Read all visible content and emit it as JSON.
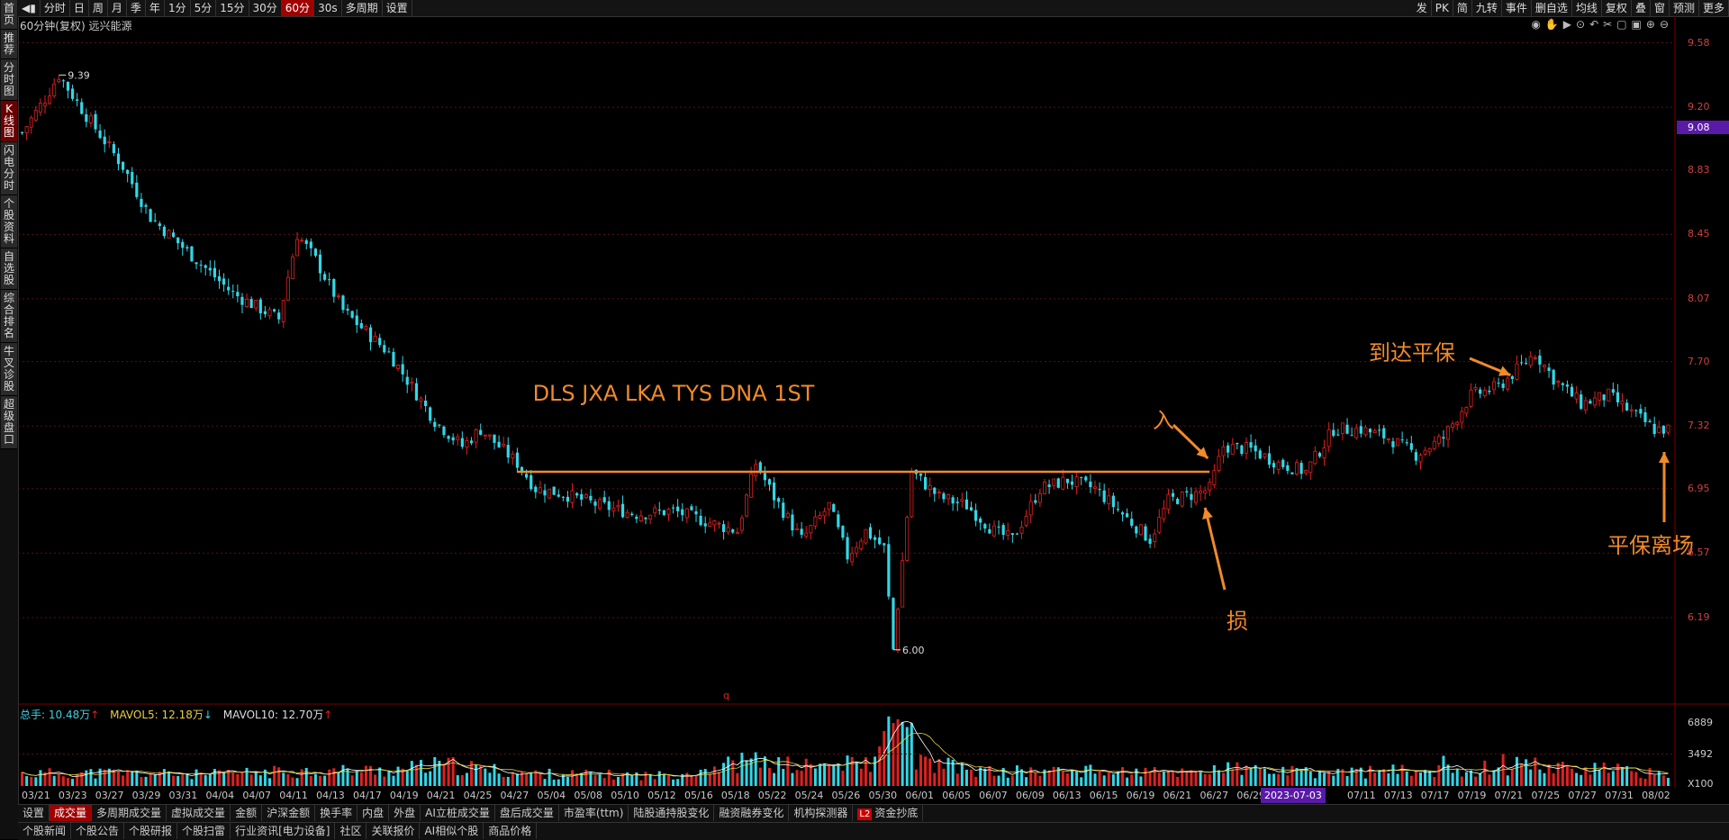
{
  "sidebar": {
    "items": [
      "首页",
      "推荐",
      "分时图",
      "K线图",
      "闪电分时",
      "个股资料",
      "自选股",
      "综合排名",
      "牛叉诊股",
      "超级盘口"
    ],
    "active_index": 3
  },
  "toolbar": {
    "periods": [
      "分时",
      "日",
      "周",
      "月",
      "季",
      "年",
      "1分",
      "5分",
      "15分",
      "30分",
      "60分",
      "30s",
      "多周期",
      "设置"
    ],
    "active_index": 10,
    "right_items": [
      "发",
      "PK",
      "简",
      "九转",
      "事件",
      "删自选",
      "均线",
      "复权",
      "叠",
      "窗",
      "预测",
      "更多"
    ]
  },
  "info": {
    "period": "60分钟(复权)",
    "stock_name": "远兴能源"
  },
  "axis": {
    "price_ticks": [
      "9.58",
      "9.20",
      "8.83",
      "8.45",
      "8.07",
      "7.70",
      "7.32",
      "6.95",
      "6.57",
      "6.19"
    ],
    "current_price": "9.08",
    "volume_ticks": [
      "6889",
      "3492",
      "X100"
    ]
  },
  "chart_data": {
    "type": "candlestick",
    "title": "DLS JXA LKA TYS DNA 1ST",
    "y_range": [
      5.85,
      9.62
    ],
    "max_label": "9.39",
    "min_label": "6.00",
    "breakeven_line": 7.05,
    "x_dates": [
      "03/21",
      "03/23",
      "03/27",
      "03/29",
      "03/31",
      "04/04",
      "04/07",
      "04/11",
      "04/13",
      "04/17",
      "04/19",
      "04/21",
      "04/25",
      "04/27",
      "05/04",
      "05/08",
      "05/10",
      "05/12",
      "05/16",
      "05/18",
      "05/22",
      "05/24",
      "05/26",
      "05/30",
      "06/01",
      "06/05",
      "06/07",
      "06/09",
      "06/13",
      "06/15",
      "06/19",
      "06/21",
      "06/27",
      "06/29",
      "07",
      "07",
      "07/11",
      "07/13",
      "07/17",
      "07/19",
      "07/21",
      "07/25",
      "07/27",
      "07/31",
      "08/02"
    ],
    "highlight_date": "2023-07-03",
    "price_path": [
      [
        0,
        9.05
      ],
      [
        5,
        9.25
      ],
      [
        8,
        9.39
      ],
      [
        14,
        9.15
      ],
      [
        22,
        8.85
      ],
      [
        28,
        8.55
      ],
      [
        38,
        8.3
      ],
      [
        46,
        8.1
      ],
      [
        56,
        7.95
      ],
      [
        60,
        8.45
      ],
      [
        64,
        8.3
      ],
      [
        70,
        8.0
      ],
      [
        80,
        7.75
      ],
      [
        90,
        7.35
      ],
      [
        96,
        7.2
      ],
      [
        100,
        7.3
      ],
      [
        108,
        7.1
      ],
      [
        112,
        6.95
      ],
      [
        118,
        6.92
      ],
      [
        126,
        6.85
      ],
      [
        134,
        6.8
      ],
      [
        142,
        6.82
      ],
      [
        150,
        6.75
      ],
      [
        156,
        6.7
      ],
      [
        160,
        7.1
      ],
      [
        164,
        6.9
      ],
      [
        170,
        6.65
      ],
      [
        176,
        6.85
      ],
      [
        180,
        6.55
      ],
      [
        184,
        6.7
      ],
      [
        188,
        6.6
      ],
      [
        190,
        6.0
      ],
      [
        194,
        7.05
      ],
      [
        200,
        6.9
      ],
      [
        206,
        6.85
      ],
      [
        212,
        6.7
      ],
      [
        216,
        6.65
      ],
      [
        222,
        6.95
      ],
      [
        228,
        7.0
      ],
      [
        234,
        6.95
      ],
      [
        240,
        6.8
      ],
      [
        246,
        6.65
      ],
      [
        250,
        6.88
      ],
      [
        256,
        6.92
      ],
      [
        259,
        6.95
      ],
      [
        262,
        7.2
      ],
      [
        268,
        7.18
      ],
      [
        274,
        7.1
      ],
      [
        280,
        7.05
      ],
      [
        286,
        7.3
      ],
      [
        292,
        7.3
      ],
      [
        298,
        7.25
      ],
      [
        304,
        7.15
      ],
      [
        310,
        7.25
      ],
      [
        316,
        7.5
      ],
      [
        322,
        7.55
      ],
      [
        326,
        7.65
      ],
      [
        330,
        7.75
      ],
      [
        334,
        7.6
      ],
      [
        340,
        7.45
      ],
      [
        346,
        7.5
      ],
      [
        352,
        7.38
      ],
      [
        356,
        7.3
      ]
    ],
    "volume_series": [
      [
        0,
        1400
      ],
      [
        20,
        1500
      ],
      [
        40,
        1300
      ],
      [
        60,
        1700
      ],
      [
        80,
        1800
      ],
      [
        92,
        2400
      ],
      [
        110,
        1400
      ],
      [
        140,
        1200
      ],
      [
        158,
        2800
      ],
      [
        170,
        2200
      ],
      [
        186,
        2600
      ],
      [
        190,
        6889
      ],
      [
        196,
        2700
      ],
      [
        210,
        1600
      ],
      [
        230,
        1700
      ],
      [
        250,
        1500
      ],
      [
        262,
        2000
      ],
      [
        280,
        1500
      ],
      [
        300,
        1700
      ],
      [
        318,
        2000
      ],
      [
        326,
        2400
      ],
      [
        340,
        2100
      ],
      [
        356,
        1400
      ]
    ],
    "volume_spikes": [
      [
        158,
        2800
      ],
      [
        188,
        6000
      ],
      [
        190,
        6889
      ],
      [
        194,
        6889
      ],
      [
        232,
        2200
      ],
      [
        310,
        3300
      ],
      [
        323,
        3500
      ],
      [
        330,
        3100
      ]
    ],
    "annotations": [
      {
        "text": "到达平保",
        "at": [
          325,
          7.62
        ]
      },
      {
        "text": "入",
        "at": [
          259,
          7.14
        ]
      },
      {
        "text": "损",
        "at": [
          258,
          6.87
        ]
      },
      {
        "text": "平保离场",
        "at": [
          355,
          7.22
        ]
      }
    ],
    "indicator": {
      "total_label": "总手: ",
      "total": "10.48万",
      "mavol5_label": "MAVOL5: ",
      "mavol5": "12.18万",
      "mavol10_label": "MAVOL10: ",
      "mavol10": "12.70万"
    }
  },
  "tabs_row1": [
    "设置",
    "成交量",
    "多周期成交量",
    "虚拟成交量",
    "金额",
    "沪深金额",
    "换手率",
    "内盘",
    "外盘",
    "AI立桩成交量",
    "盘后成交量",
    "市盈率(ttm)",
    "陆股通持股变化",
    "融资融券变化",
    "机构探测器",
    "资金抄底"
  ],
  "tabs_row1_active": 1,
  "tabs_row2": [
    "个股新闻",
    "个股公告",
    "个股研报",
    "个股扫雷",
    "行业资讯[电力设备]",
    "社区",
    "关联报价",
    "AI相似个股",
    "商品价格"
  ],
  "colors": {
    "up": "#e02020",
    "down": "#30d8e8",
    "annotation": "#f08a2a",
    "grid": "#5a1010",
    "ma5": "#ffffff",
    "ma10": "#e8d040"
  }
}
